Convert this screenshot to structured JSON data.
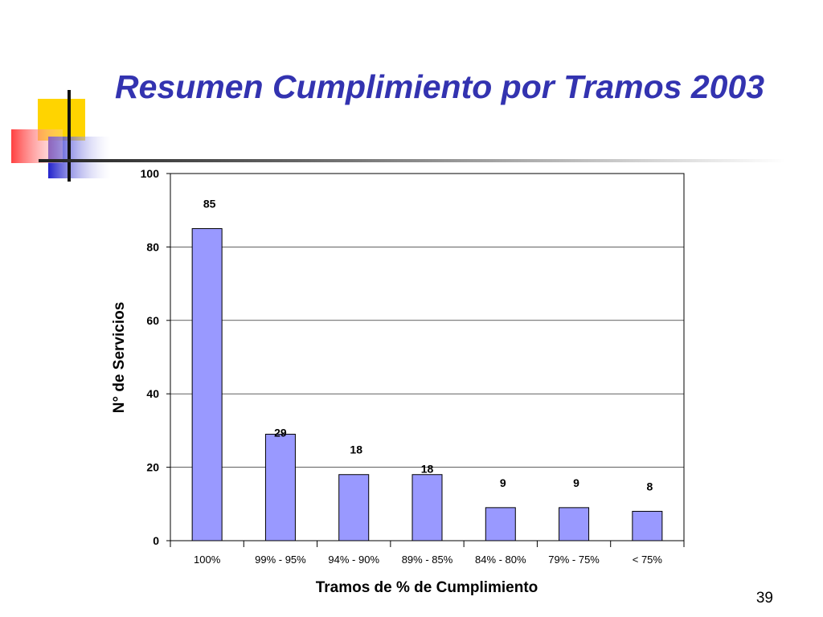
{
  "slide": {
    "title": "Resumen Cumplimiento por Tramos 2003",
    "page_number": "39"
  },
  "colors": {
    "title": "#3333b0",
    "bar_fill": "#9999ff",
    "logo_yellow": "#ffd400",
    "logo_blue": "#2a2ad4",
    "logo_red": "#ff5050"
  },
  "chart_data": {
    "type": "bar",
    "categories": [
      "100%",
      "99% - 95%",
      "94% - 90%",
      "89% - 85%",
      "84% - 80%",
      "79% - 75%",
      "< 75%"
    ],
    "values": [
      85,
      29,
      18,
      18,
      9,
      9,
      8
    ],
    "data_labels": [
      "85",
      "29",
      "18",
      "18",
      "9",
      "9",
      "8"
    ],
    "xlabel": "Tramos de % de Cumplimiento",
    "ylabel": "N° de Servicios",
    "ylim": [
      0,
      100
    ],
    "yticks": [
      0,
      20,
      40,
      60,
      80,
      100
    ],
    "grid": true,
    "legend": "none"
  }
}
